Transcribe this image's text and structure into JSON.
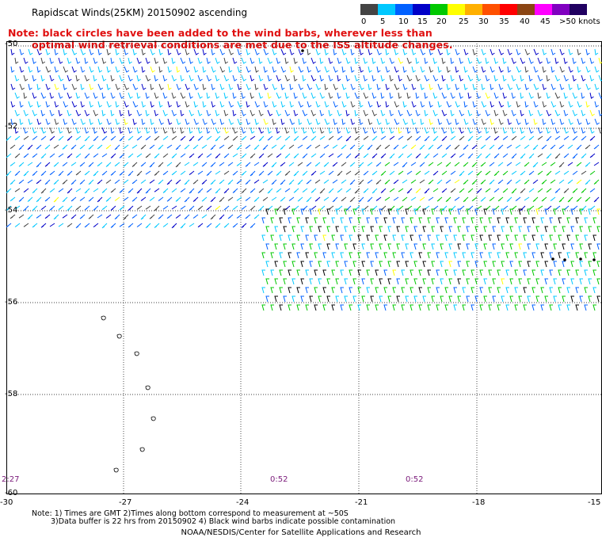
{
  "title": "Rapidscat Winds(25KM) 20150902 ascending",
  "note": {
    "line1": "Note: black circles have been added to the wind barbs, wherever less than",
    "line2": "optimal wind retrieval conditions are met due to the ISS altitude changes."
  },
  "legend": {
    "colors": [
      "#444444",
      "#00c8ff",
      "#0060ff",
      "#0000c8",
      "#00c800",
      "#ffff00",
      "#ffb000",
      "#ff5000",
      "#ff0000",
      "#8b4513",
      "#ff00ff",
      "#8000c0",
      "#200060"
    ],
    "labels": [
      "0",
      "5",
      "10",
      "15",
      "20",
      "25",
      "30",
      "35",
      "40",
      "45",
      ">50 knots"
    ]
  },
  "map": {
    "lat_labels": [
      "-50",
      "-52",
      "-54",
      "-56",
      "-58",
      "-60"
    ],
    "lon_labels": [
      "-30",
      "-27",
      "-24",
      "-21",
      "-18",
      "-15"
    ],
    "times": [
      "2:27",
      "0:52",
      "0:52"
    ]
  },
  "footnote": {
    "line1": "Note: 1) Times are GMT 2)Times along bottom correspond to measurement at ~50S",
    "line2": "3)Data buffer is 22 hrs from 20150902 4) Black wind barbs indicate possible contamination"
  },
  "credit": "NOAA/NESDIS/Center for Satellite Applications and Research"
}
